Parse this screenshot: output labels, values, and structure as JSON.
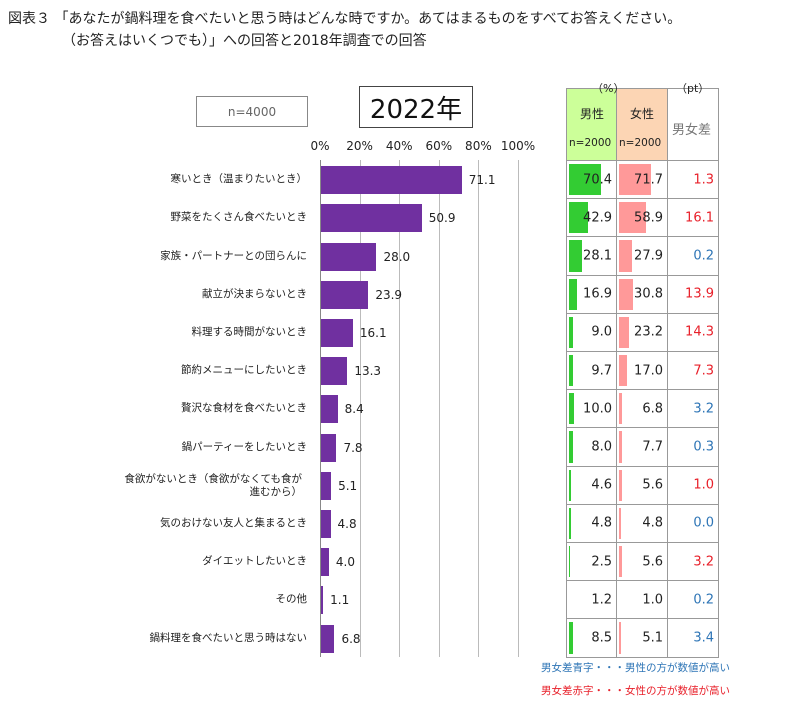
{
  "title_line1": "図表３ 「あなたが鍋料理を食べたいと思う時はどんな時ですか。あてはまるものをすべてお答えください。",
  "title_line2": "（お答えはいくつでも）」への回答と2018年調査での回答",
  "sample_label": "n=4000",
  "year_label": "2022年",
  "table": {
    "unit_pct": "（%）",
    "unit_pt": "（pt）",
    "male_header": "男性",
    "male_n": "n=2000",
    "female_header": "女性",
    "female_n": "n=2000",
    "diff_header": "男女差",
    "male_color": "#33cc33",
    "female_color": "#ff9999",
    "male_header_bg": "#ccff99",
    "female_header_bg": "#fcd5b4",
    "rows": [
      {
        "male": "70.4",
        "female": "71.7",
        "diff": "1.3",
        "diff_color": "#e8202a"
      },
      {
        "male": "42.9",
        "female": "58.9",
        "diff": "16.1",
        "diff_color": "#e8202a"
      },
      {
        "male": "28.1",
        "female": "27.9",
        "diff": "0.2",
        "diff_color": "#2e75b6"
      },
      {
        "male": "16.9",
        "female": "30.8",
        "diff": "13.9",
        "diff_color": "#e8202a"
      },
      {
        "male": "9.0",
        "female": "23.2",
        "diff": "14.3",
        "diff_color": "#e8202a"
      },
      {
        "male": "9.7",
        "female": "17.0",
        "diff": "7.3",
        "diff_color": "#e8202a"
      },
      {
        "male": "10.0",
        "female": "6.8",
        "diff": "3.2",
        "diff_color": "#2e75b6"
      },
      {
        "male": "8.0",
        "female": "7.7",
        "diff": "0.3",
        "diff_color": "#2e75b6"
      },
      {
        "male": "4.6",
        "female": "5.6",
        "diff": "1.0",
        "diff_color": "#e8202a"
      },
      {
        "male": "4.8",
        "female": "4.8",
        "diff": "0.0",
        "diff_color": "#2e75b6"
      },
      {
        "male": "2.5",
        "female": "5.6",
        "diff": "3.2",
        "diff_color": "#e8202a"
      },
      {
        "male": "1.2",
        "female": "1.0",
        "diff": "0.2",
        "diff_color": "#2e75b6"
      },
      {
        "male": "8.5",
        "female": "5.1",
        "diff": "3.4",
        "diff_color": "#2e75b6"
      }
    ],
    "note_blue": "男女差青字・・・男性の方が数値が高い",
    "note_red": "男女差赤字・・・女性の方が数値が高い",
    "note_blue_color": "#2e75b6",
    "note_red_color": "#e8202a"
  },
  "chart_data": {
    "type": "bar",
    "orientation": "horizontal",
    "categories": [
      "寒いとき（温まりたいとき）",
      "野菜をたくさん食べたいとき",
      "家族・パートナーとの団らんに",
      "献立が決まらないとき",
      "料理する時間がないとき",
      "節約メニューにしたいとき",
      "贅沢な食材を食べたいとき",
      "鍋パーティーをしたいとき",
      "食欲がないとき（食欲がなくても食が進むから）",
      "気のおけない友人と集まるとき",
      "ダイエットしたいとき",
      "その他",
      "鍋料理を食べたいと思う時はない"
    ],
    "values": [
      71.1,
      50.9,
      28.0,
      23.9,
      16.1,
      13.3,
      8.4,
      7.8,
      5.1,
      4.8,
      4.0,
      1.1,
      6.8
    ],
    "value_labels": [
      "71.1",
      "50.9",
      "28.0",
      "23.9",
      "16.1",
      "13.3",
      "8.4",
      "7.8",
      "5.1",
      "4.8",
      "4.0",
      "1.1",
      "6.8"
    ],
    "xlim": [
      0,
      100
    ],
    "tick_labels": [
      "0%",
      "20%",
      "40%",
      "60%",
      "80%",
      "100%"
    ],
    "grid": true,
    "bar_color": "#7030a0"
  }
}
